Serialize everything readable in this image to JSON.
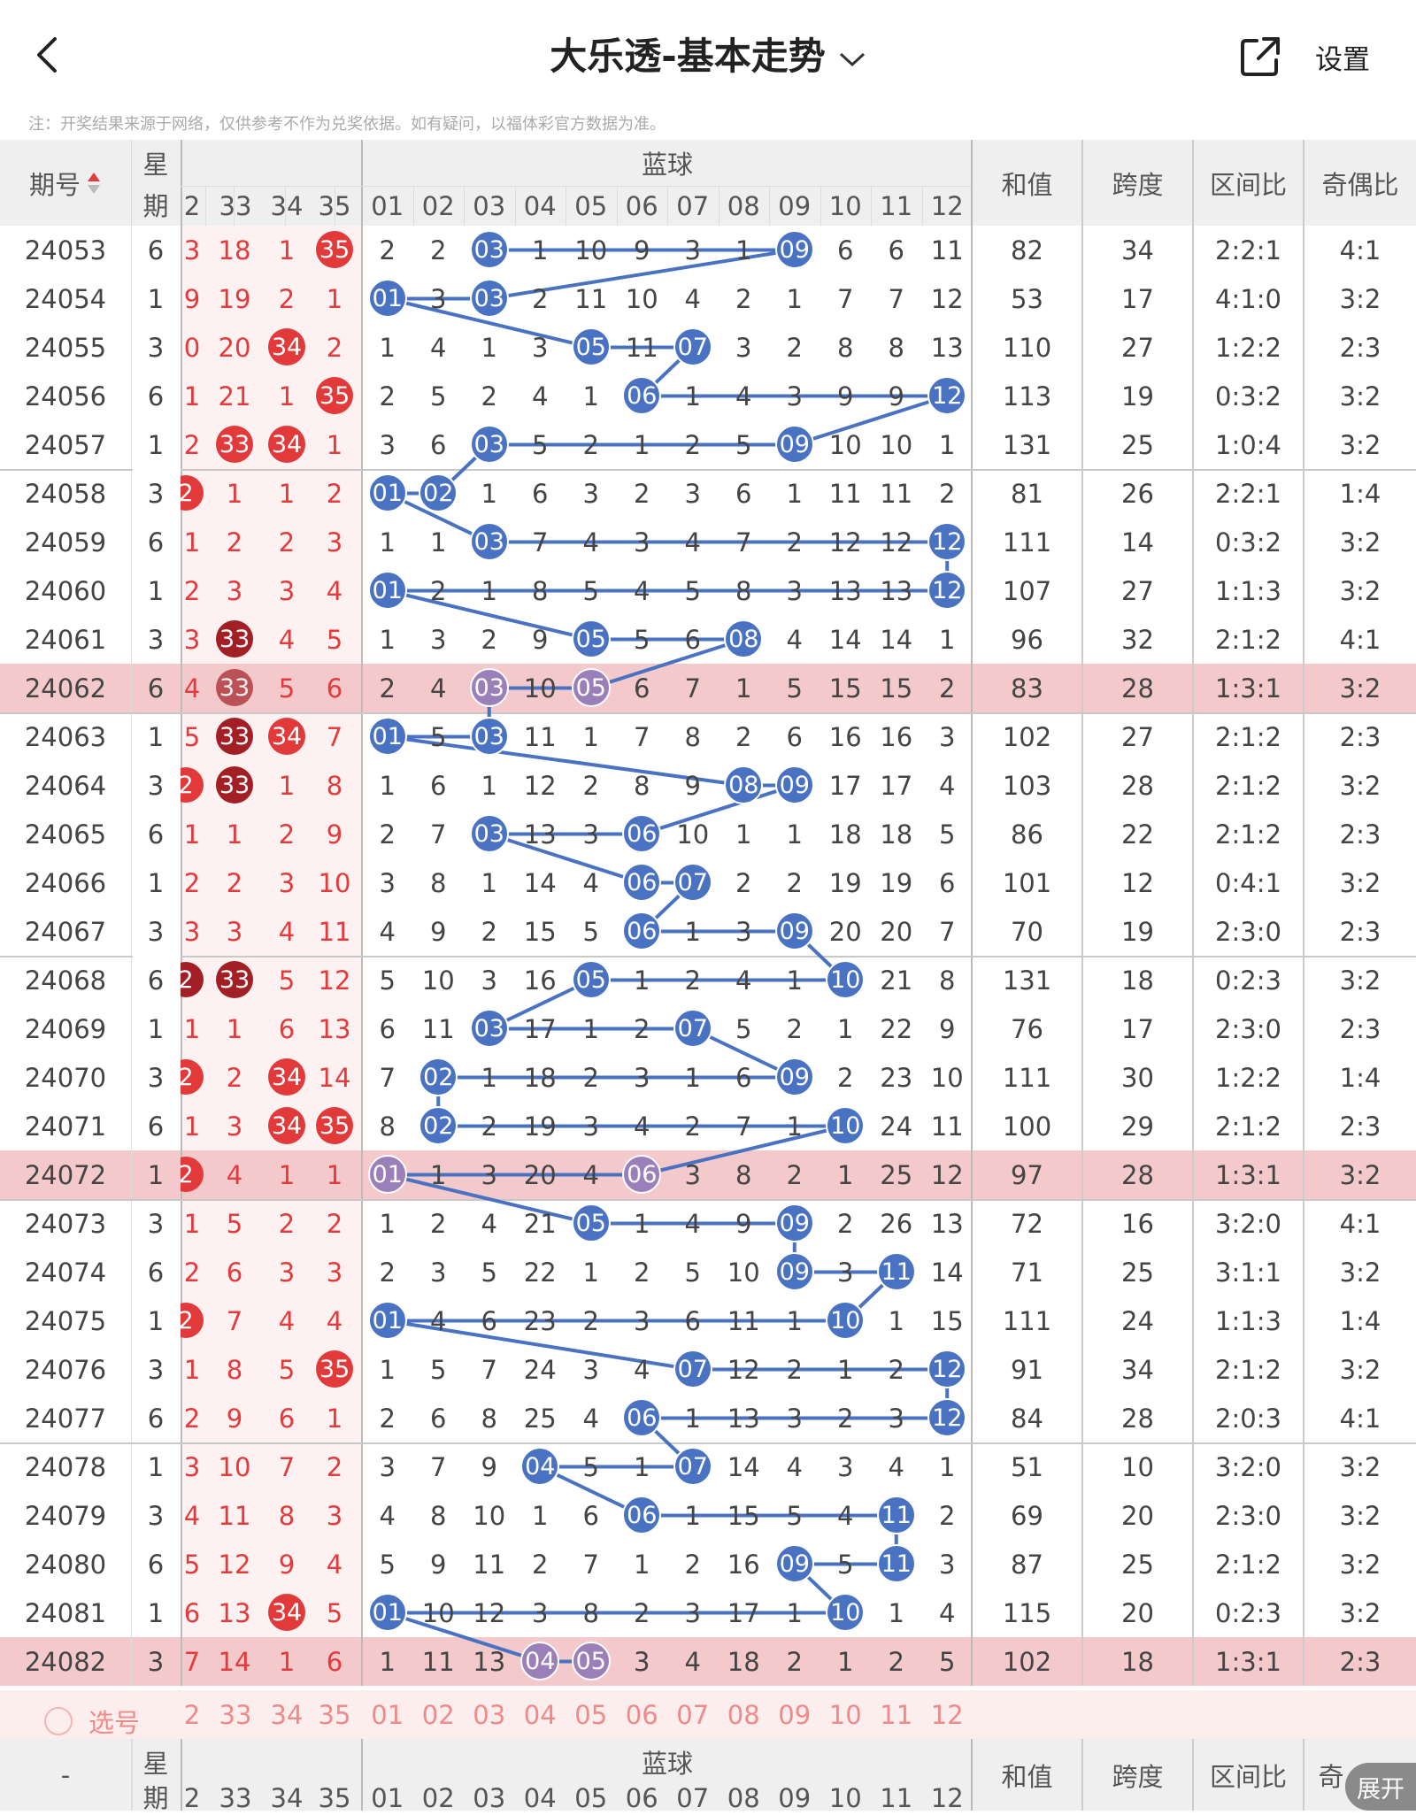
{
  "header": {
    "title": "大乐透-基本走势",
    "settings_label": "设置"
  },
  "note": "注：开奖结果来源于网络，仅供参考不作为兑奖依据。如有疑问，以福体彩官方数据为准。",
  "table": {
    "col_issue": "期号",
    "col_week_1": "星",
    "col_week_2": "期",
    "blue_group": "蓝球",
    "col_sum": "和值",
    "col_span": "跨度",
    "col_zone": "区间比",
    "col_odd": "奇偶比",
    "red_tail_headers": [
      "2",
      "33",
      "34",
      "35"
    ],
    "blue_headers": [
      "01",
      "02",
      "03",
      "04",
      "05",
      "06",
      "07",
      "08",
      "09",
      "10",
      "11",
      "12"
    ],
    "rows": [
      {
        "issue": "24053",
        "week": "6",
        "edge": "3",
        "r": [
          "18",
          "1",
          "35"
        ],
        "rb": [
          0,
          0,
          1
        ],
        "b": [
          "2",
          "2",
          "03",
          "1",
          "10",
          "9",
          "3",
          "1",
          "09",
          "6",
          "6",
          "11"
        ],
        "sum": "82",
        "span": "34",
        "zone": "2:2:1",
        "odd": "4:1"
      },
      {
        "issue": "24054",
        "week": "1",
        "edge": "9",
        "r": [
          "19",
          "2",
          "1"
        ],
        "rb": [
          0,
          0,
          0
        ],
        "b": [
          "01",
          "3",
          "03",
          "2",
          "11",
          "10",
          "4",
          "2",
          "1",
          "7",
          "7",
          "12"
        ],
        "sum": "53",
        "span": "17",
        "zone": "4:1:0",
        "odd": "3:2"
      },
      {
        "issue": "24055",
        "week": "3",
        "edge": "0",
        "r": [
          "20",
          "34",
          "2"
        ],
        "rb": [
          0,
          1,
          0
        ],
        "b": [
          "1",
          "4",
          "1",
          "3",
          "05",
          "11",
          "07",
          "3",
          "2",
          "8",
          "8",
          "13"
        ],
        "sum": "110",
        "span": "27",
        "zone": "1:2:2",
        "odd": "2:3"
      },
      {
        "issue": "24056",
        "week": "6",
        "edge": "1",
        "r": [
          "21",
          "1",
          "35"
        ],
        "rb": [
          0,
          0,
          1
        ],
        "b": [
          "2",
          "5",
          "2",
          "4",
          "1",
          "06",
          "1",
          "4",
          "3",
          "9",
          "9",
          "12"
        ],
        "sum": "113",
        "span": "19",
        "zone": "0:3:2",
        "odd": "3:2"
      },
      {
        "issue": "24057",
        "week": "1",
        "edge": "2",
        "r": [
          "33",
          "34",
          "1"
        ],
        "rb": [
          1,
          1,
          0
        ],
        "b": [
          "3",
          "6",
          "03",
          "5",
          "2",
          "1",
          "2",
          "5",
          "09",
          "10",
          "10",
          "1"
        ],
        "sum": "131",
        "span": "25",
        "zone": "1:0:4",
        "odd": "3:2"
      },
      {
        "issue": "24058",
        "week": "3",
        "edge": "2",
        "eb": 1,
        "r": [
          "1",
          "1",
          "2"
        ],
        "rb": [
          0,
          0,
          0
        ],
        "b": [
          "01",
          "02",
          "1",
          "6",
          "3",
          "2",
          "3",
          "6",
          "1",
          "11",
          "11",
          "2"
        ],
        "sum": "81",
        "span": "26",
        "zone": "2:2:1",
        "odd": "1:4"
      },
      {
        "issue": "24059",
        "week": "6",
        "edge": "1",
        "r": [
          "2",
          "2",
          "3"
        ],
        "rb": [
          0,
          0,
          0
        ],
        "b": [
          "1",
          "1",
          "03",
          "7",
          "4",
          "3",
          "4",
          "7",
          "2",
          "12",
          "12",
          "12"
        ],
        "sum": "111",
        "span": "14",
        "zone": "0:3:2",
        "odd": "3:2"
      },
      {
        "issue": "24060",
        "week": "1",
        "edge": "2",
        "r": [
          "3",
          "3",
          "4"
        ],
        "rb": [
          0,
          0,
          0
        ],
        "b": [
          "01",
          "2",
          "1",
          "8",
          "5",
          "4",
          "5",
          "8",
          "3",
          "13",
          "13",
          "12"
        ],
        "sum": "107",
        "span": "27",
        "zone": "1:1:3",
        "odd": "3:2"
      },
      {
        "issue": "24061",
        "week": "3",
        "edge": "3",
        "r": [
          "33",
          "4",
          "5"
        ],
        "rb": [
          2,
          0,
          0
        ],
        "b": [
          "1",
          "3",
          "2",
          "9",
          "05",
          "5",
          "6",
          "08",
          "4",
          "14",
          "14",
          "1"
        ],
        "sum": "96",
        "span": "32",
        "zone": "2:1:2",
        "odd": "4:1"
      },
      {
        "issue": "24062",
        "week": "6",
        "edge": "4",
        "hl": 1,
        "r": [
          "33",
          "5",
          "6"
        ],
        "rb": [
          2,
          0,
          0
        ],
        "b": [
          "2",
          "4",
          "03",
          "10",
          "05",
          "6",
          "7",
          "1",
          "5",
          "15",
          "15",
          "2"
        ],
        "sum": "83",
        "span": "28",
        "zone": "1:3:1",
        "odd": "3:2"
      },
      {
        "issue": "24063",
        "week": "1",
        "edge": "5",
        "r": [
          "33",
          "34",
          "7"
        ],
        "rb": [
          2,
          1,
          0
        ],
        "b": [
          "01",
          "5",
          "03",
          "11",
          "1",
          "7",
          "8",
          "2",
          "6",
          "16",
          "16",
          "3"
        ],
        "sum": "102",
        "span": "27",
        "zone": "2:1:2",
        "odd": "2:3"
      },
      {
        "issue": "24064",
        "week": "3",
        "edge": "2",
        "eb": 1,
        "r": [
          "33",
          "1",
          "8"
        ],
        "rb": [
          2,
          0,
          0
        ],
        "b": [
          "1",
          "6",
          "1",
          "12",
          "2",
          "8",
          "9",
          "08",
          "09",
          "17",
          "17",
          "4"
        ],
        "sum": "103",
        "span": "28",
        "zone": "2:1:2",
        "odd": "3:2"
      },
      {
        "issue": "24065",
        "week": "6",
        "edge": "1",
        "r": [
          "1",
          "2",
          "9"
        ],
        "rb": [
          0,
          0,
          0
        ],
        "b": [
          "2",
          "7",
          "03",
          "13",
          "3",
          "06",
          "10",
          "1",
          "1",
          "18",
          "18",
          "5"
        ],
        "sum": "86",
        "span": "22",
        "zone": "2:1:2",
        "odd": "2:3"
      },
      {
        "issue": "24066",
        "week": "1",
        "edge": "2",
        "r": [
          "2",
          "3",
          "10"
        ],
        "rb": [
          0,
          0,
          0
        ],
        "b": [
          "3",
          "8",
          "1",
          "14",
          "4",
          "06",
          "07",
          "2",
          "2",
          "19",
          "19",
          "6"
        ],
        "sum": "101",
        "span": "12",
        "zone": "0:4:1",
        "odd": "3:2"
      },
      {
        "issue": "24067",
        "week": "3",
        "edge": "3",
        "r": [
          "3",
          "4",
          "11"
        ],
        "rb": [
          0,
          0,
          0
        ],
        "b": [
          "4",
          "9",
          "2",
          "15",
          "5",
          "06",
          "1",
          "3",
          "09",
          "20",
          "20",
          "7"
        ],
        "sum": "70",
        "span": "19",
        "zone": "2:3:0",
        "odd": "2:3"
      },
      {
        "issue": "24068",
        "week": "6",
        "edge": "2",
        "eb": 2,
        "r": [
          "33",
          "5",
          "12"
        ],
        "rb": [
          2,
          0,
          0
        ],
        "b": [
          "5",
          "10",
          "3",
          "16",
          "05",
          "1",
          "2",
          "4",
          "1",
          "10",
          "21",
          "8"
        ],
        "sum": "131",
        "span": "18",
        "zone": "0:2:3",
        "odd": "3:2"
      },
      {
        "issue": "24069",
        "week": "1",
        "edge": "1",
        "r": [
          "1",
          "6",
          "13"
        ],
        "rb": [
          0,
          0,
          0
        ],
        "b": [
          "6",
          "11",
          "03",
          "17",
          "1",
          "2",
          "07",
          "5",
          "2",
          "1",
          "22",
          "9"
        ],
        "sum": "76",
        "span": "17",
        "zone": "2:3:0",
        "odd": "2:3"
      },
      {
        "issue": "24070",
        "week": "3",
        "edge": "2",
        "eb": 1,
        "r": [
          "2",
          "34",
          "14"
        ],
        "rb": [
          0,
          1,
          0
        ],
        "b": [
          "7",
          "02",
          "1",
          "18",
          "2",
          "3",
          "1",
          "6",
          "09",
          "2",
          "23",
          "10"
        ],
        "sum": "111",
        "span": "30",
        "zone": "1:2:2",
        "odd": "1:4"
      },
      {
        "issue": "24071",
        "week": "6",
        "edge": "1",
        "r": [
          "3",
          "34",
          "35"
        ],
        "rb": [
          0,
          1,
          1
        ],
        "b": [
          "8",
          "02",
          "2",
          "19",
          "3",
          "4",
          "2",
          "7",
          "1",
          "10",
          "24",
          "11"
        ],
        "sum": "100",
        "span": "29",
        "zone": "2:1:2",
        "odd": "2:3"
      },
      {
        "issue": "24072",
        "week": "1",
        "edge": "2",
        "eb": 1,
        "hl": 1,
        "r": [
          "4",
          "1",
          "1"
        ],
        "rb": [
          0,
          0,
          0
        ],
        "b": [
          "01",
          "1",
          "3",
          "20",
          "4",
          "06",
          "3",
          "8",
          "2",
          "1",
          "25",
          "12"
        ],
        "sum": "97",
        "span": "28",
        "zone": "1:3:1",
        "odd": "3:2"
      },
      {
        "issue": "24073",
        "week": "3",
        "edge": "1",
        "r": [
          "5",
          "2",
          "2"
        ],
        "rb": [
          0,
          0,
          0
        ],
        "b": [
          "1",
          "2",
          "4",
          "21",
          "05",
          "1",
          "4",
          "9",
          "09",
          "2",
          "26",
          "13"
        ],
        "sum": "72",
        "span": "16",
        "zone": "3:2:0",
        "odd": "4:1"
      },
      {
        "issue": "24074",
        "week": "6",
        "edge": "2",
        "r": [
          "6",
          "3",
          "3"
        ],
        "rb": [
          0,
          0,
          0
        ],
        "b": [
          "2",
          "3",
          "5",
          "22",
          "1",
          "2",
          "5",
          "10",
          "09",
          "3",
          "11",
          "14"
        ],
        "sum": "71",
        "span": "25",
        "zone": "3:1:1",
        "odd": "3:2"
      },
      {
        "issue": "24075",
        "week": "1",
        "edge": "2",
        "eb": 1,
        "r": [
          "7",
          "4",
          "4"
        ],
        "rb": [
          0,
          0,
          0
        ],
        "b": [
          "01",
          "4",
          "6",
          "23",
          "2",
          "3",
          "6",
          "11",
          "1",
          "10",
          "1",
          "15"
        ],
        "sum": "111",
        "span": "24",
        "zone": "1:1:3",
        "odd": "1:4"
      },
      {
        "issue": "24076",
        "week": "3",
        "edge": "1",
        "r": [
          "8",
          "5",
          "35"
        ],
        "rb": [
          0,
          0,
          1
        ],
        "b": [
          "1",
          "5",
          "7",
          "24",
          "3",
          "4",
          "07",
          "12",
          "2",
          "1",
          "2",
          "12"
        ],
        "sum": "91",
        "span": "34",
        "zone": "2:1:2",
        "odd": "3:2"
      },
      {
        "issue": "24077",
        "week": "6",
        "edge": "2",
        "r": [
          "9",
          "6",
          "1"
        ],
        "rb": [
          0,
          0,
          0
        ],
        "b": [
          "2",
          "6",
          "8",
          "25",
          "4",
          "06",
          "1",
          "13",
          "3",
          "2",
          "3",
          "12"
        ],
        "sum": "84",
        "span": "28",
        "zone": "2:0:3",
        "odd": "4:1"
      },
      {
        "issue": "24078",
        "week": "1",
        "edge": "3",
        "r": [
          "10",
          "7",
          "2"
        ],
        "rb": [
          0,
          0,
          0
        ],
        "b": [
          "3",
          "7",
          "9",
          "04",
          "5",
          "1",
          "07",
          "14",
          "4",
          "3",
          "4",
          "1"
        ],
        "sum": "51",
        "span": "10",
        "zone": "3:2:0",
        "odd": "3:2"
      },
      {
        "issue": "24079",
        "week": "3",
        "edge": "4",
        "r": [
          "11",
          "8",
          "3"
        ],
        "rb": [
          0,
          0,
          0
        ],
        "b": [
          "4",
          "8",
          "10",
          "1",
          "6",
          "06",
          "1",
          "15",
          "5",
          "4",
          "11",
          "2"
        ],
        "sum": "69",
        "span": "20",
        "zone": "2:3:0",
        "odd": "3:2"
      },
      {
        "issue": "24080",
        "week": "6",
        "edge": "5",
        "r": [
          "12",
          "9",
          "4"
        ],
        "rb": [
          0,
          0,
          0
        ],
        "b": [
          "5",
          "9",
          "11",
          "2",
          "7",
          "1",
          "2",
          "16",
          "09",
          "5",
          "11",
          "3"
        ],
        "sum": "87",
        "span": "25",
        "zone": "2:1:2",
        "odd": "3:2"
      },
      {
        "issue": "24081",
        "week": "1",
        "edge": "6",
        "r": [
          "13",
          "34",
          "5"
        ],
        "rb": [
          0,
          1,
          0
        ],
        "b": [
          "01",
          "10",
          "12",
          "3",
          "8",
          "2",
          "3",
          "17",
          "1",
          "10",
          "1",
          "4"
        ],
        "sum": "115",
        "span": "20",
        "zone": "0:2:3",
        "odd": "3:2"
      },
      {
        "issue": "24082",
        "week": "3",
        "edge": "7",
        "hl": 1,
        "r": [
          "14",
          "1",
          "6"
        ],
        "rb": [
          0,
          0,
          0
        ],
        "b": [
          "1",
          "11",
          "13",
          "04",
          "05",
          "3",
          "4",
          "18",
          "2",
          "1",
          "2",
          "5"
        ],
        "sum": "102",
        "span": "18",
        "zone": "1:3:1",
        "odd": "2:3"
      }
    ],
    "blue_hits": [
      [
        2,
        8
      ],
      [
        0,
        2
      ],
      [
        4,
        6
      ],
      [
        5,
        11
      ],
      [
        2,
        8
      ],
      [
        0,
        1
      ],
      [
        2,
        11
      ],
      [
        0,
        11
      ],
      [
        4,
        7
      ],
      [
        2,
        4
      ],
      [
        0,
        2
      ],
      [
        7,
        8
      ],
      [
        2,
        5
      ],
      [
        5,
        6
      ],
      [
        5,
        8
      ],
      [
        4,
        9
      ],
      [
        2,
        6
      ],
      [
        1,
        8
      ],
      [
        1,
        9
      ],
      [
        0,
        5
      ],
      [
        4,
        8
      ],
      [
        8,
        10
      ],
      [
        0,
        9
      ],
      [
        6,
        11
      ],
      [
        5,
        11
      ],
      [
        3,
        6
      ],
      [
        5,
        10
      ],
      [
        8,
        10
      ],
      [
        0,
        9
      ],
      [
        3,
        4
      ]
    ],
    "footer_pick": "选号",
    "bottom_dash": "-",
    "bottom_week_1": "星",
    "bottom_week_2": "期",
    "bottom_sum": "和值",
    "bottom_span": "跨度",
    "bottom_zone": "区间比",
    "bottom_odd_partial": "奇"
  },
  "expand_label": "展开",
  "colors": {
    "blue_ball": "#4a72c2",
    "red_ball": "#e23a3a",
    "repeat_red_ball": "#a21f26",
    "highlight_row": "#f3c9cb",
    "red_zone_bg": "#fdf1f1",
    "header_bg": "#efefef",
    "footer_bg": "#fdeeee"
  }
}
